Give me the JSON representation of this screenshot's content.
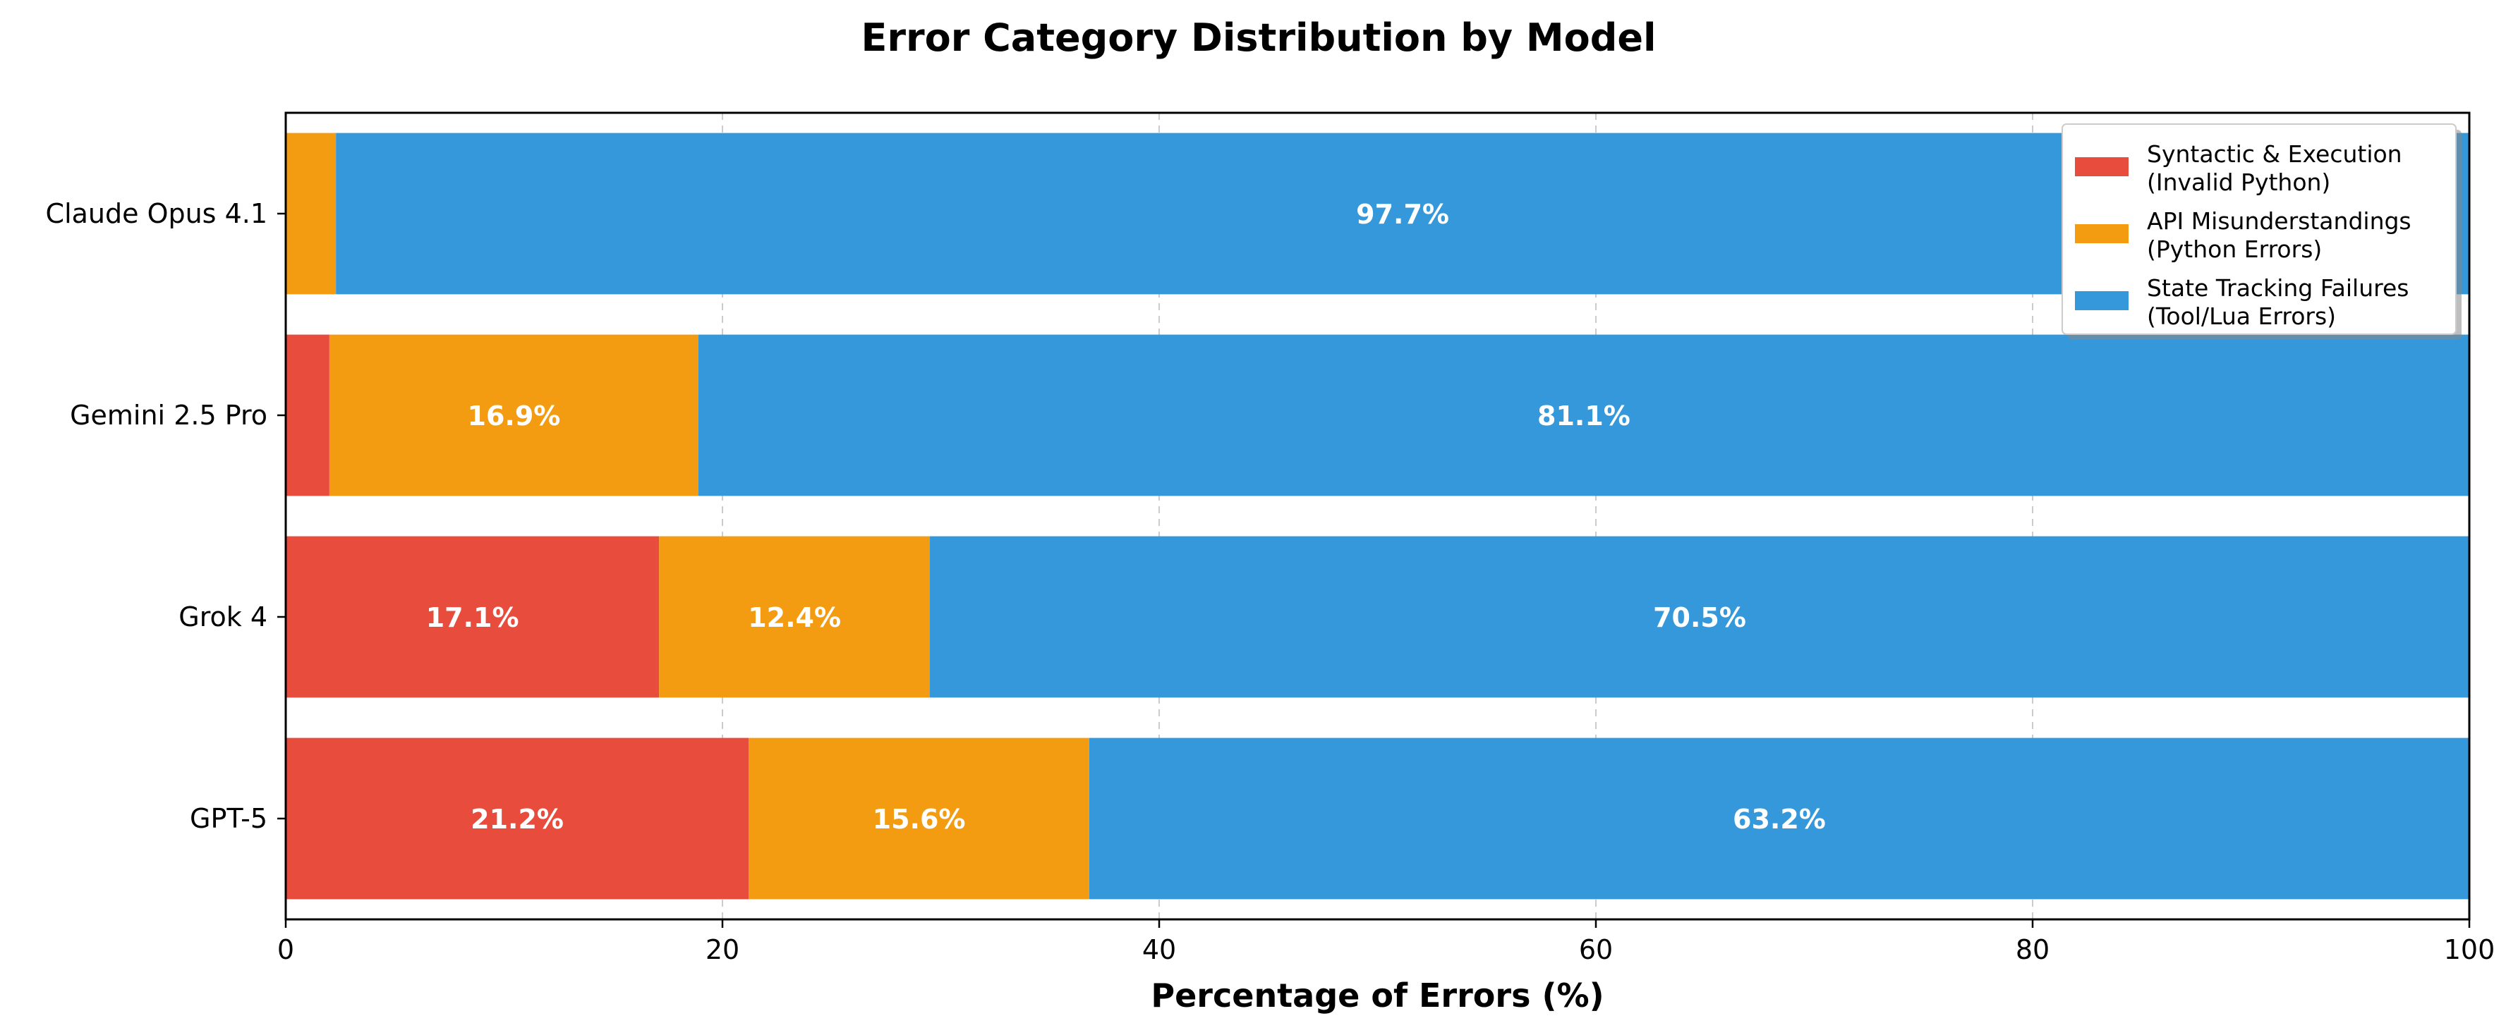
{
  "chart_data": {
    "type": "bar",
    "orientation": "horizontal",
    "stacked": true,
    "title": "Error Category Distribution by Model",
    "xlabel": "Percentage of Errors (%)",
    "ylabel": "",
    "xlim": [
      0,
      100
    ],
    "xticks": [
      0,
      20,
      40,
      60,
      80,
      100
    ],
    "grid": "x-dashed",
    "legend_position": "top-right",
    "categories": [
      "Claude Opus 4.1",
      "Gemini 2.5 Pro",
      "Grok 4",
      "GPT-5"
    ],
    "series": [
      {
        "name": "Syntactic & Execution\n(Invalid Python)",
        "color": "#e74c3c",
        "values": [
          0.0,
          2.0,
          17.1,
          21.2
        ],
        "labels": [
          "",
          "",
          "17.1%",
          "21.2%"
        ]
      },
      {
        "name": "API Misunderstandings\n(Python Errors)",
        "color": "#f39c12",
        "values": [
          2.3,
          16.9,
          12.4,
          15.6
        ],
        "labels": [
          "",
          "16.9%",
          "12.4%",
          "15.6%"
        ]
      },
      {
        "name": "State Tracking Failures\n(Tool/Lua Errors)",
        "color": "#3498db",
        "values": [
          97.7,
          81.1,
          70.5,
          63.2
        ],
        "labels": [
          "97.7%",
          "81.1%",
          "70.5%",
          "63.2%"
        ]
      }
    ]
  }
}
